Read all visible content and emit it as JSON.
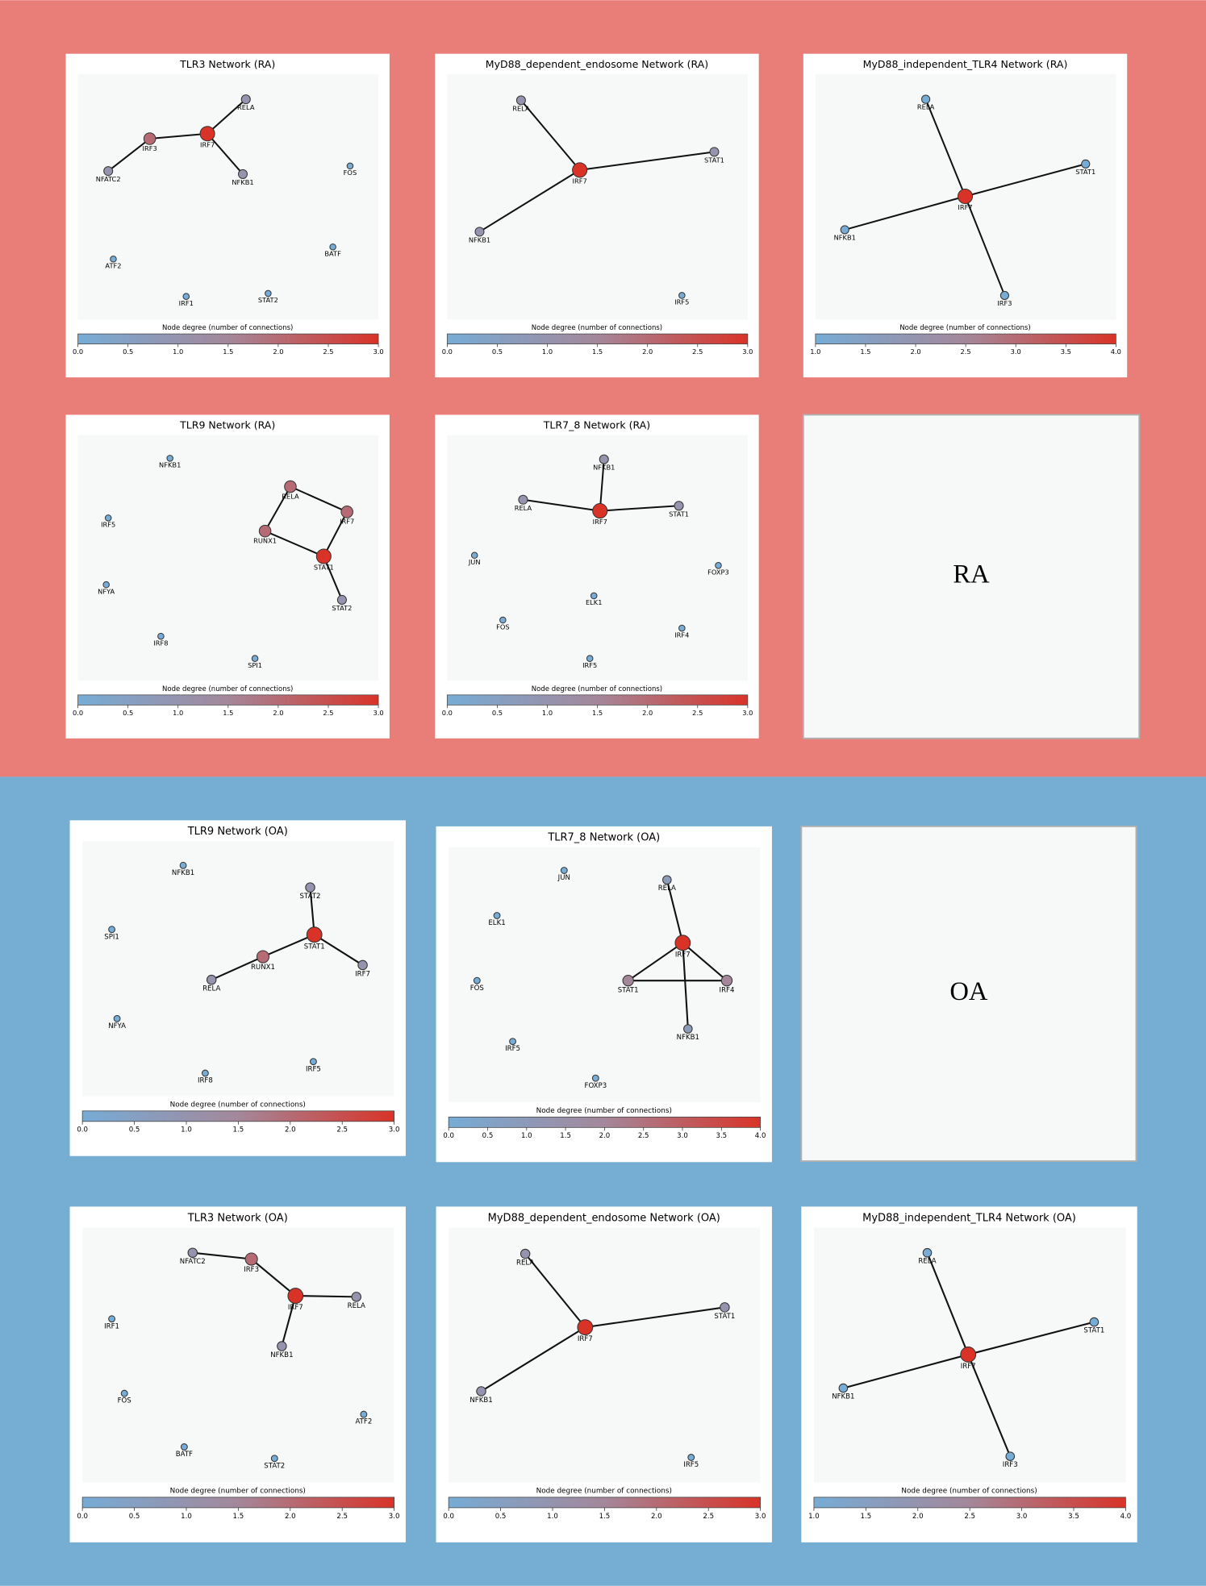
{
  "colormap": [
    "#76acd6",
    "#a4879a",
    "#d93328"
  ],
  "sections": [
    {
      "label": "RA",
      "panels": [
        {
          "title": "TLR3 Network (RA)",
          "colorbar_label": "Node degree (number of connections)",
          "clim": [
            0,
            3
          ],
          "cticks": [
            {
              "value": 0,
              "label": "0.0"
            },
            {
              "value": 0.5,
              "label": "0.5"
            },
            {
              "value": 1,
              "label": "1.0"
            },
            {
              "value": 1.5,
              "label": "1.5"
            },
            {
              "value": 2,
              "label": "2.0"
            },
            {
              "value": 2.5,
              "label": "2.5"
            },
            {
              "value": 3,
              "label": "3.0"
            }
          ],
          "nodes": [
            "IRF3",
            "IRF7",
            "RELA",
            "NFATC2",
            "NFKB1",
            "FOS",
            "BATF",
            "ATF2",
            "IRF1",
            "STAT2"
          ],
          "edges": [
            [
              0,
              1
            ],
            [
              1,
              2
            ],
            [
              1,
              4
            ],
            [
              0,
              3
            ]
          ]
        },
        {
          "title": "MyD88_dependent_endosome Network (RA)",
          "colorbar_label": "Node degree (number of connections)",
          "clim": [
            0,
            3
          ],
          "cticks": [
            {
              "value": 0,
              "label": "0.0"
            },
            {
              "value": 0.5,
              "label": "0.5"
            },
            {
              "value": 1,
              "label": "1.0"
            },
            {
              "value": 1.5,
              "label": "1.5"
            },
            {
              "value": 2,
              "label": "2.0"
            },
            {
              "value": 2.5,
              "label": "2.5"
            },
            {
              "value": 3,
              "label": "3.0"
            }
          ],
          "nodes": [
            "RELA",
            "IRF7",
            "STAT1",
            "NFKB1",
            "IRF5"
          ],
          "edges": [
            [
              1,
              0
            ],
            [
              1,
              2
            ],
            [
              1,
              3
            ]
          ]
        },
        {
          "title": "MyD88_independent_TLR4 Network (RA)",
          "colorbar_label": "Node degree (number of connections)",
          "clim": [
            1,
            4
          ],
          "cticks": [
            {
              "value": 1,
              "label": "1.0"
            },
            {
              "value": 1.5,
              "label": "1.5"
            },
            {
              "value": 2,
              "label": "2.0"
            },
            {
              "value": 2.5,
              "label": "2.5"
            },
            {
              "value": 3,
              "label": "3.0"
            },
            {
              "value": 3.5,
              "label": "3.5"
            },
            {
              "value": 4,
              "label": "4.0"
            }
          ],
          "nodes": [
            "RELA",
            "IRF7",
            "STAT1",
            "NFKB1",
            "IRF3"
          ],
          "edges": [
            [
              1,
              0
            ],
            [
              1,
              2
            ],
            [
              1,
              3
            ],
            [
              1,
              4
            ]
          ]
        },
        {
          "title": "TLR9 Network (RA)",
          "colorbar_label": "Node degree (number of connections)",
          "clim": [
            0,
            3
          ],
          "cticks": [
            {
              "value": 0,
              "label": "0.0"
            },
            {
              "value": 0.5,
              "label": "0.5"
            },
            {
              "value": 1,
              "label": "1.0"
            },
            {
              "value": 1.5,
              "label": "1.5"
            },
            {
              "value": 2,
              "label": "2.0"
            },
            {
              "value": 2.5,
              "label": "2.5"
            },
            {
              "value": 3,
              "label": "3.0"
            }
          ],
          "nodes": [
            "NFKB1",
            "IRF5",
            "NFYA",
            "IRF8",
            "SPI1",
            "RELA",
            "IRF7",
            "RUNX1",
            "STAT1",
            "STAT2"
          ],
          "edges": [
            [
              5,
              6
            ],
            [
              5,
              7
            ],
            [
              7,
              8
            ],
            [
              6,
              8
            ],
            [
              8,
              9
            ]
          ]
        },
        {
          "title": "TLR7_8 Network (RA)",
          "colorbar_label": "Node degree (number of connections)",
          "clim": [
            0,
            3
          ],
          "cticks": [
            {
              "value": 0,
              "label": "0.0"
            },
            {
              "value": 0.5,
              "label": "0.5"
            },
            {
              "value": 1,
              "label": "1.0"
            },
            {
              "value": 1.5,
              "label": "1.5"
            },
            {
              "value": 2,
              "label": "2.0"
            },
            {
              "value": 2.5,
              "label": "2.5"
            },
            {
              "value": 3,
              "label": "3.0"
            }
          ],
          "nodes": [
            "NFKB1",
            "RELA",
            "IRF7",
            "STAT1",
            "JUN",
            "FOXP3",
            "ELK1",
            "FOS",
            "IRF4",
            "IRF5"
          ],
          "edges": [
            [
              2,
              0
            ],
            [
              2,
              1
            ],
            [
              2,
              3
            ]
          ]
        }
      ]
    },
    {
      "label": "OA",
      "panels": [
        {
          "title": "TLR9 Network (OA)",
          "colorbar_label": "Node degree (number of connections)",
          "clim": [
            0,
            3
          ],
          "cticks": [
            {
              "value": 0,
              "label": "0.0"
            },
            {
              "value": 0.5,
              "label": "0.5"
            },
            {
              "value": 1,
              "label": "1.0"
            },
            {
              "value": 1.5,
              "label": "1.5"
            },
            {
              "value": 2,
              "label": "2.0"
            },
            {
              "value": 2.5,
              "label": "2.5"
            },
            {
              "value": 3,
              "label": "3.0"
            }
          ],
          "nodes": [
            "NFKB1",
            "SPI1",
            "NFYA",
            "IRF8",
            "IRF5",
            "STAT2",
            "STAT1",
            "RUNX1",
            "RELA",
            "IRF7"
          ],
          "edges": [
            [
              6,
              5
            ],
            [
              6,
              7
            ],
            [
              6,
              9
            ],
            [
              7,
              8
            ]
          ]
        },
        {
          "title": "TLR7_8 Network (OA)",
          "colorbar_label": "Node degree (number of connections)",
          "clim": [
            0,
            4
          ],
          "cticks": [
            {
              "value": 0,
              "label": "0.0"
            },
            {
              "value": 0.5,
              "label": "0.5"
            },
            {
              "value": 1,
              "label": "1.0"
            },
            {
              "value": 1.5,
              "label": "1.5"
            },
            {
              "value": 2,
              "label": "2.0"
            },
            {
              "value": 2.5,
              "label": "2.5"
            },
            {
              "value": 3,
              "label": "3.0"
            },
            {
              "value": 3.5,
              "label": "3.5"
            },
            {
              "value": 4,
              "label": "4.0"
            }
          ],
          "nodes": [
            "JUN",
            "RELA",
            "ELK1",
            "IRF7",
            "FOS",
            "STAT1",
            "IRF4",
            "NFKB1",
            "IRF5",
            "FOXP3"
          ],
          "edges": [
            [
              3,
              1
            ],
            [
              3,
              5
            ],
            [
              3,
              6
            ],
            [
              3,
              7
            ],
            [
              5,
              6
            ]
          ]
        },
        {
          "title": "TLR3 Network (OA)",
          "colorbar_label": "Node degree (number of connections)",
          "clim": [
            0,
            3
          ],
          "cticks": [
            {
              "value": 0,
              "label": "0.0"
            },
            {
              "value": 0.5,
              "label": "0.5"
            },
            {
              "value": 1,
              "label": "1.0"
            },
            {
              "value": 1.5,
              "label": "1.5"
            },
            {
              "value": 2,
              "label": "2.0"
            },
            {
              "value": 2.5,
              "label": "2.5"
            },
            {
              "value": 3,
              "label": "3.0"
            }
          ],
          "nodes": [
            "NFATC2",
            "IRF3",
            "IRF7",
            "RELA",
            "IRF1",
            "NFKB1",
            "FOS",
            "ATF2",
            "BATF",
            "STAT2"
          ],
          "edges": [
            [
              0,
              1
            ],
            [
              1,
              2
            ],
            [
              2,
              3
            ],
            [
              2,
              5
            ]
          ]
        },
        {
          "title": "MyD88_dependent_endosome Network (OA)",
          "colorbar_label": "Node degree (number of connections)",
          "clim": [
            0,
            3
          ],
          "cticks": [
            {
              "value": 0,
              "label": "0.0"
            },
            {
              "value": 0.5,
              "label": "0.5"
            },
            {
              "value": 1,
              "label": "1.0"
            },
            {
              "value": 1.5,
              "label": "1.5"
            },
            {
              "value": 2,
              "label": "2.0"
            },
            {
              "value": 2.5,
              "label": "2.5"
            },
            {
              "value": 3,
              "label": "3.0"
            }
          ],
          "nodes": [
            "RELA",
            "IRF7",
            "STAT1",
            "NFKB1",
            "IRF5"
          ],
          "edges": [
            [
              1,
              0
            ],
            [
              1,
              2
            ],
            [
              1,
              3
            ]
          ]
        },
        {
          "title": "MyD88_independent_TLR4 Network (OA)",
          "colorbar_label": "Node degree (number of connections)",
          "clim": [
            1,
            4
          ],
          "cticks": [
            {
              "value": 1,
              "label": "1.0"
            },
            {
              "value": 1.5,
              "label": "1.5"
            },
            {
              "value": 2,
              "label": "2.0"
            },
            {
              "value": 2.5,
              "label": "2.5"
            },
            {
              "value": 3,
              "label": "3.0"
            },
            {
              "value": 3.5,
              "label": "3.5"
            },
            {
              "value": 4,
              "label": "4.0"
            }
          ],
          "nodes": [
            "RELA",
            "IRF7",
            "STAT1",
            "NFKB1",
            "IRF3"
          ],
          "edges": [
            [
              1,
              0
            ],
            [
              1,
              2
            ],
            [
              1,
              3
            ],
            [
              1,
              4
            ]
          ]
        }
      ]
    }
  ]
}
